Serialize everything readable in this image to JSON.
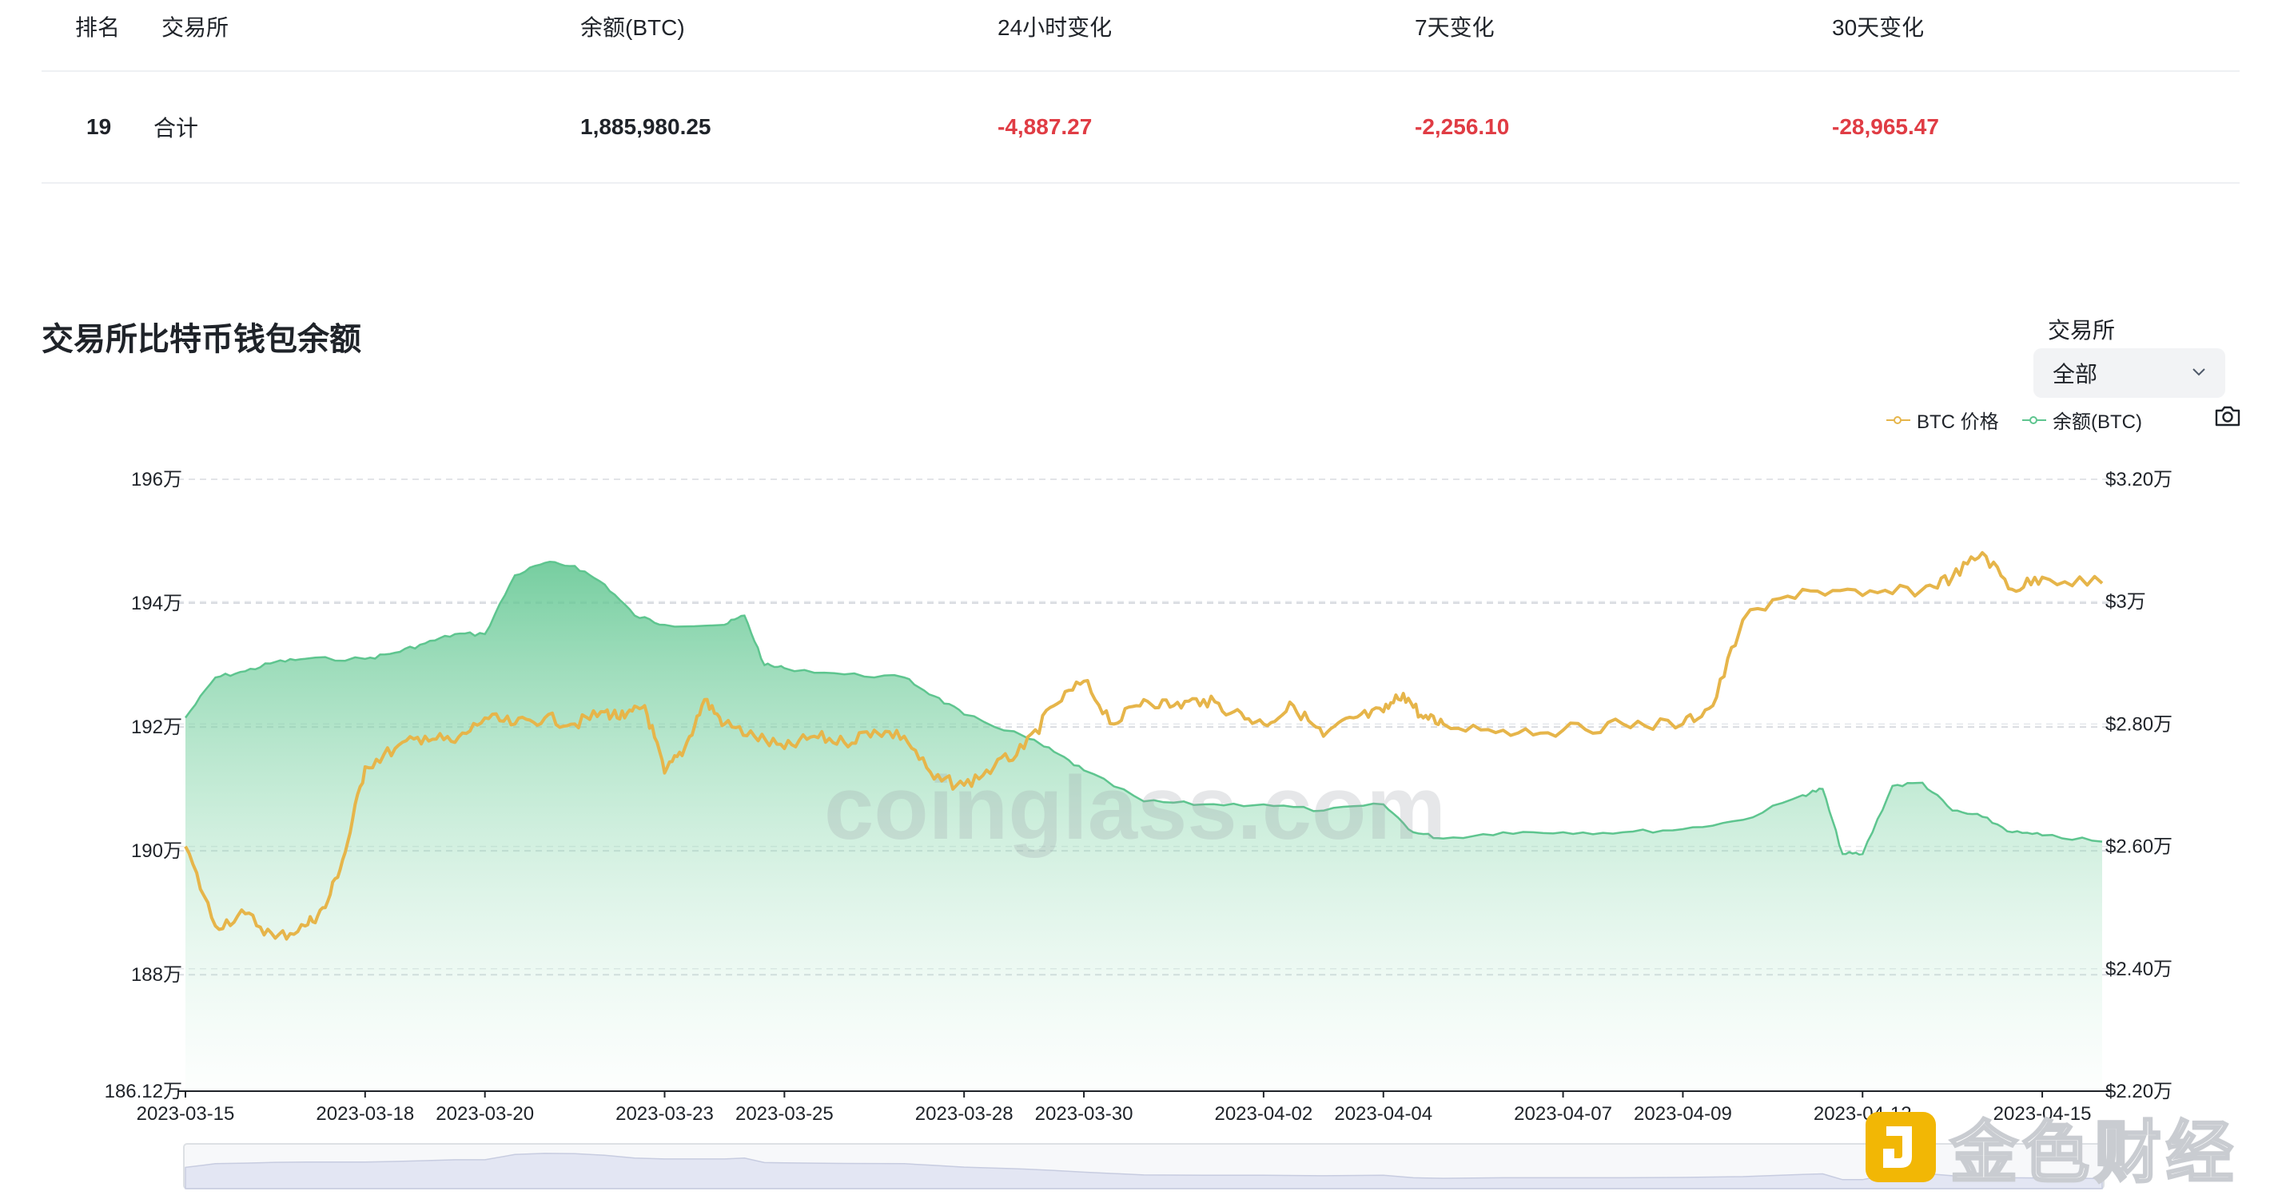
{
  "table": {
    "headers": {
      "rank": "排名",
      "exchange": "交易所",
      "balance": "余额(BTC)",
      "change_24h": "24小时变化",
      "change_7d": "7天变化",
      "change_30d": "30天变化"
    },
    "rows": [
      {
        "rank": "19",
        "exchange": "合计",
        "balance": "1,885,980.25",
        "change_24h": "-4,887.27",
        "change_7d": "-2,256.10",
        "change_30d": "-28,965.47"
      }
    ]
  },
  "filter": {
    "label": "交易所",
    "value": "全部"
  },
  "logo": {
    "text": "金色财经"
  },
  "colors": {
    "btc_price": "#e6b54a",
    "balance": "#5ec58f",
    "negative": "#e03c44"
  },
  "chart_data": {
    "type": "line",
    "title": "交易所比特币钱包余额",
    "watermark": "coinglass.com",
    "legend": [
      "BTC 价格",
      "余额(BTC)"
    ],
    "legend_position": "top-right",
    "grid": true,
    "x_ticks": [
      "2023-03-15",
      "2023-03-18",
      "2023-03-20",
      "2023-03-23",
      "2023-03-25",
      "2023-03-28",
      "2023-03-30",
      "2023-04-02",
      "2023-04-04",
      "2023-04-07",
      "2023-04-09",
      "2023-04-12",
      "2023-04-15"
    ],
    "left_axis": {
      "unit": "BTC",
      "ylim": [
        1861200,
        1960000
      ],
      "tick_values": [
        1861200,
        1880000,
        1900000,
        1920000,
        1940000,
        1960000
      ],
      "tick_labels": [
        "186.12万",
        "188万",
        "190万",
        "192万",
        "194万",
        "196万"
      ]
    },
    "right_axis": {
      "unit": "USD",
      "ylim": [
        22000,
        32000
      ],
      "tick_values": [
        22000,
        24000,
        26000,
        28000,
        30000,
        32000
      ],
      "tick_labels": [
        "$2.20万",
        "$2.40万",
        "$2.60万",
        "$2.80万",
        "$3万",
        "$3.20万"
      ]
    },
    "series": [
      {
        "name": "余额(BTC)",
        "axis": "left",
        "style": "area",
        "points": [
          [
            "2023-03-15",
            1921500
          ],
          [
            "2023-03-15",
            1928000
          ],
          [
            "2023-03-16",
            1929000
          ],
          [
            "2023-03-16",
            1930500
          ],
          [
            "2023-03-17",
            1931000
          ],
          [
            "2023-03-18",
            1931000
          ],
          [
            "2023-03-18",
            1932000
          ],
          [
            "2023-03-19",
            1933500
          ],
          [
            "2023-03-19",
            1935000
          ],
          [
            "2023-03-20",
            1935000
          ],
          [
            "2023-03-20",
            1944500
          ],
          [
            "2023-03-21",
            1946500
          ],
          [
            "2023-03-21",
            1946000
          ],
          [
            "2023-03-22",
            1943000
          ],
          [
            "2023-03-22",
            1938000
          ],
          [
            "2023-03-23",
            1936500
          ],
          [
            "2023-03-24",
            1936500
          ],
          [
            "2023-03-24",
            1938000
          ],
          [
            "2023-03-24",
            1930000
          ],
          [
            "2023-03-25",
            1929500
          ],
          [
            "2023-03-26",
            1928500
          ],
          [
            "2023-03-27",
            1928000
          ],
          [
            "2023-03-27",
            1925000
          ],
          [
            "2023-03-28",
            1922000
          ],
          [
            "2023-03-29",
            1918500
          ],
          [
            "2023-03-29",
            1916000
          ],
          [
            "2023-03-30",
            1913000
          ],
          [
            "2023-03-31",
            1908000
          ],
          [
            "2023-04-01",
            1907500
          ],
          [
            "2023-04-02",
            1907500
          ],
          [
            "2023-04-03",
            1906500
          ],
          [
            "2023-04-04",
            1907500
          ],
          [
            "2023-04-04",
            1903000
          ],
          [
            "2023-04-05",
            1902000
          ],
          [
            "2023-04-06",
            1903000
          ],
          [
            "2023-04-07",
            1903000
          ],
          [
            "2023-04-08",
            1903000
          ],
          [
            "2023-04-09",
            1903500
          ],
          [
            "2023-04-10",
            1905000
          ],
          [
            "2023-04-11",
            1909000
          ],
          [
            "2023-04-11",
            1910000
          ],
          [
            "2023-04-11",
            1899500
          ],
          [
            "2023-04-12",
            1899500
          ],
          [
            "2023-04-12",
            1910500
          ],
          [
            "2023-04-13",
            1911000
          ],
          [
            "2023-04-13",
            1906500
          ],
          [
            "2023-04-14",
            1905500
          ],
          [
            "2023-04-14",
            1903000
          ],
          [
            "2023-04-15",
            1902500
          ],
          [
            "2023-04-16",
            1901500
          ]
        ]
      },
      {
        "name": "BTC 价格",
        "axis": "right",
        "style": "line",
        "points": [
          [
            "2023-03-15",
            26000
          ],
          [
            "2023-03-15",
            24700
          ],
          [
            "2023-03-16",
            24900
          ],
          [
            "2023-03-16",
            24500
          ],
          [
            "2023-03-17",
            24700
          ],
          [
            "2023-03-17",
            25000
          ],
          [
            "2023-03-17",
            25900
          ],
          [
            "2023-03-18",
            27300
          ],
          [
            "2023-03-18",
            27600
          ],
          [
            "2023-03-19",
            27800
          ],
          [
            "2023-03-19",
            27700
          ],
          [
            "2023-03-20",
            28100
          ],
          [
            "2023-03-20",
            28000
          ],
          [
            "2023-03-21",
            28100
          ],
          [
            "2023-03-21",
            28000
          ],
          [
            "2023-03-22",
            28200
          ],
          [
            "2023-03-22",
            28100
          ],
          [
            "2023-03-22",
            28300
          ],
          [
            "2023-03-23",
            27200
          ],
          [
            "2023-03-23",
            27600
          ],
          [
            "2023-03-23",
            28400
          ],
          [
            "2023-03-24",
            28000
          ],
          [
            "2023-03-24",
            27800
          ],
          [
            "2023-03-25",
            27600
          ],
          [
            "2023-03-25",
            27800
          ],
          [
            "2023-03-26",
            27700
          ],
          [
            "2023-03-26",
            27900
          ],
          [
            "2023-03-27",
            27800
          ],
          [
            "2023-03-27",
            27100
          ],
          [
            "2023-03-28",
            27000
          ],
          [
            "2023-03-28",
            27300
          ],
          [
            "2023-03-29",
            27600
          ],
          [
            "2023-03-29",
            28300
          ],
          [
            "2023-03-30",
            28700
          ],
          [
            "2023-03-30",
            28000
          ],
          [
            "2023-03-31",
            28400
          ],
          [
            "2023-03-31",
            28300
          ],
          [
            "2023-04-01",
            28400
          ],
          [
            "2023-04-01",
            28200
          ],
          [
            "2023-04-02",
            28000
          ],
          [
            "2023-04-02",
            28300
          ],
          [
            "2023-04-03",
            27800
          ],
          [
            "2023-04-03",
            28100
          ],
          [
            "2023-04-04",
            28200
          ],
          [
            "2023-04-04",
            28500
          ],
          [
            "2023-04-04",
            28100
          ],
          [
            "2023-04-05",
            28000
          ],
          [
            "2023-04-06",
            27900
          ],
          [
            "2023-04-07",
            27900
          ],
          [
            "2023-04-08",
            28000
          ],
          [
            "2023-04-09",
            28000
          ],
          [
            "2023-04-09",
            28300
          ],
          [
            "2023-04-10",
            29700
          ],
          [
            "2023-04-11",
            30200
          ],
          [
            "2023-04-12",
            30100
          ],
          [
            "2023-04-13",
            30200
          ],
          [
            "2023-04-13",
            30400
          ],
          [
            "2023-04-14",
            30800
          ],
          [
            "2023-04-14",
            30200
          ],
          [
            "2023-04-15",
            30400
          ],
          [
            "2023-04-16",
            30300
          ]
        ]
      }
    ]
  }
}
